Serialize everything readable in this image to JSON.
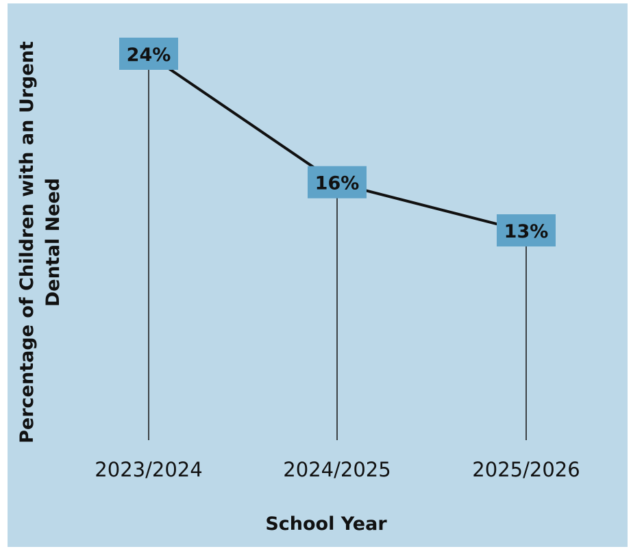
{
  "chart_data": {
    "type": "line",
    "title": "",
    "categories": [
      "2023/2024",
      "2024/2025",
      "2025/2026"
    ],
    "values": [
      24,
      16,
      13
    ],
    "data_labels": [
      "24%",
      "16%",
      "13%"
    ],
    "xlabel": "School Year",
    "ylabel": "Percentage of Children with an Urgent Dental Need",
    "ylabel_lines": [
      "Percentage of Children with an Urgent",
      "Dental Need"
    ],
    "ylim": [
      0,
      24
    ],
    "grid": false,
    "legend": "none",
    "colors": {
      "background": "#bcd8e8",
      "line": "#111111",
      "label_box": "#5fa3c8",
      "drop_line": "#111111"
    }
  }
}
